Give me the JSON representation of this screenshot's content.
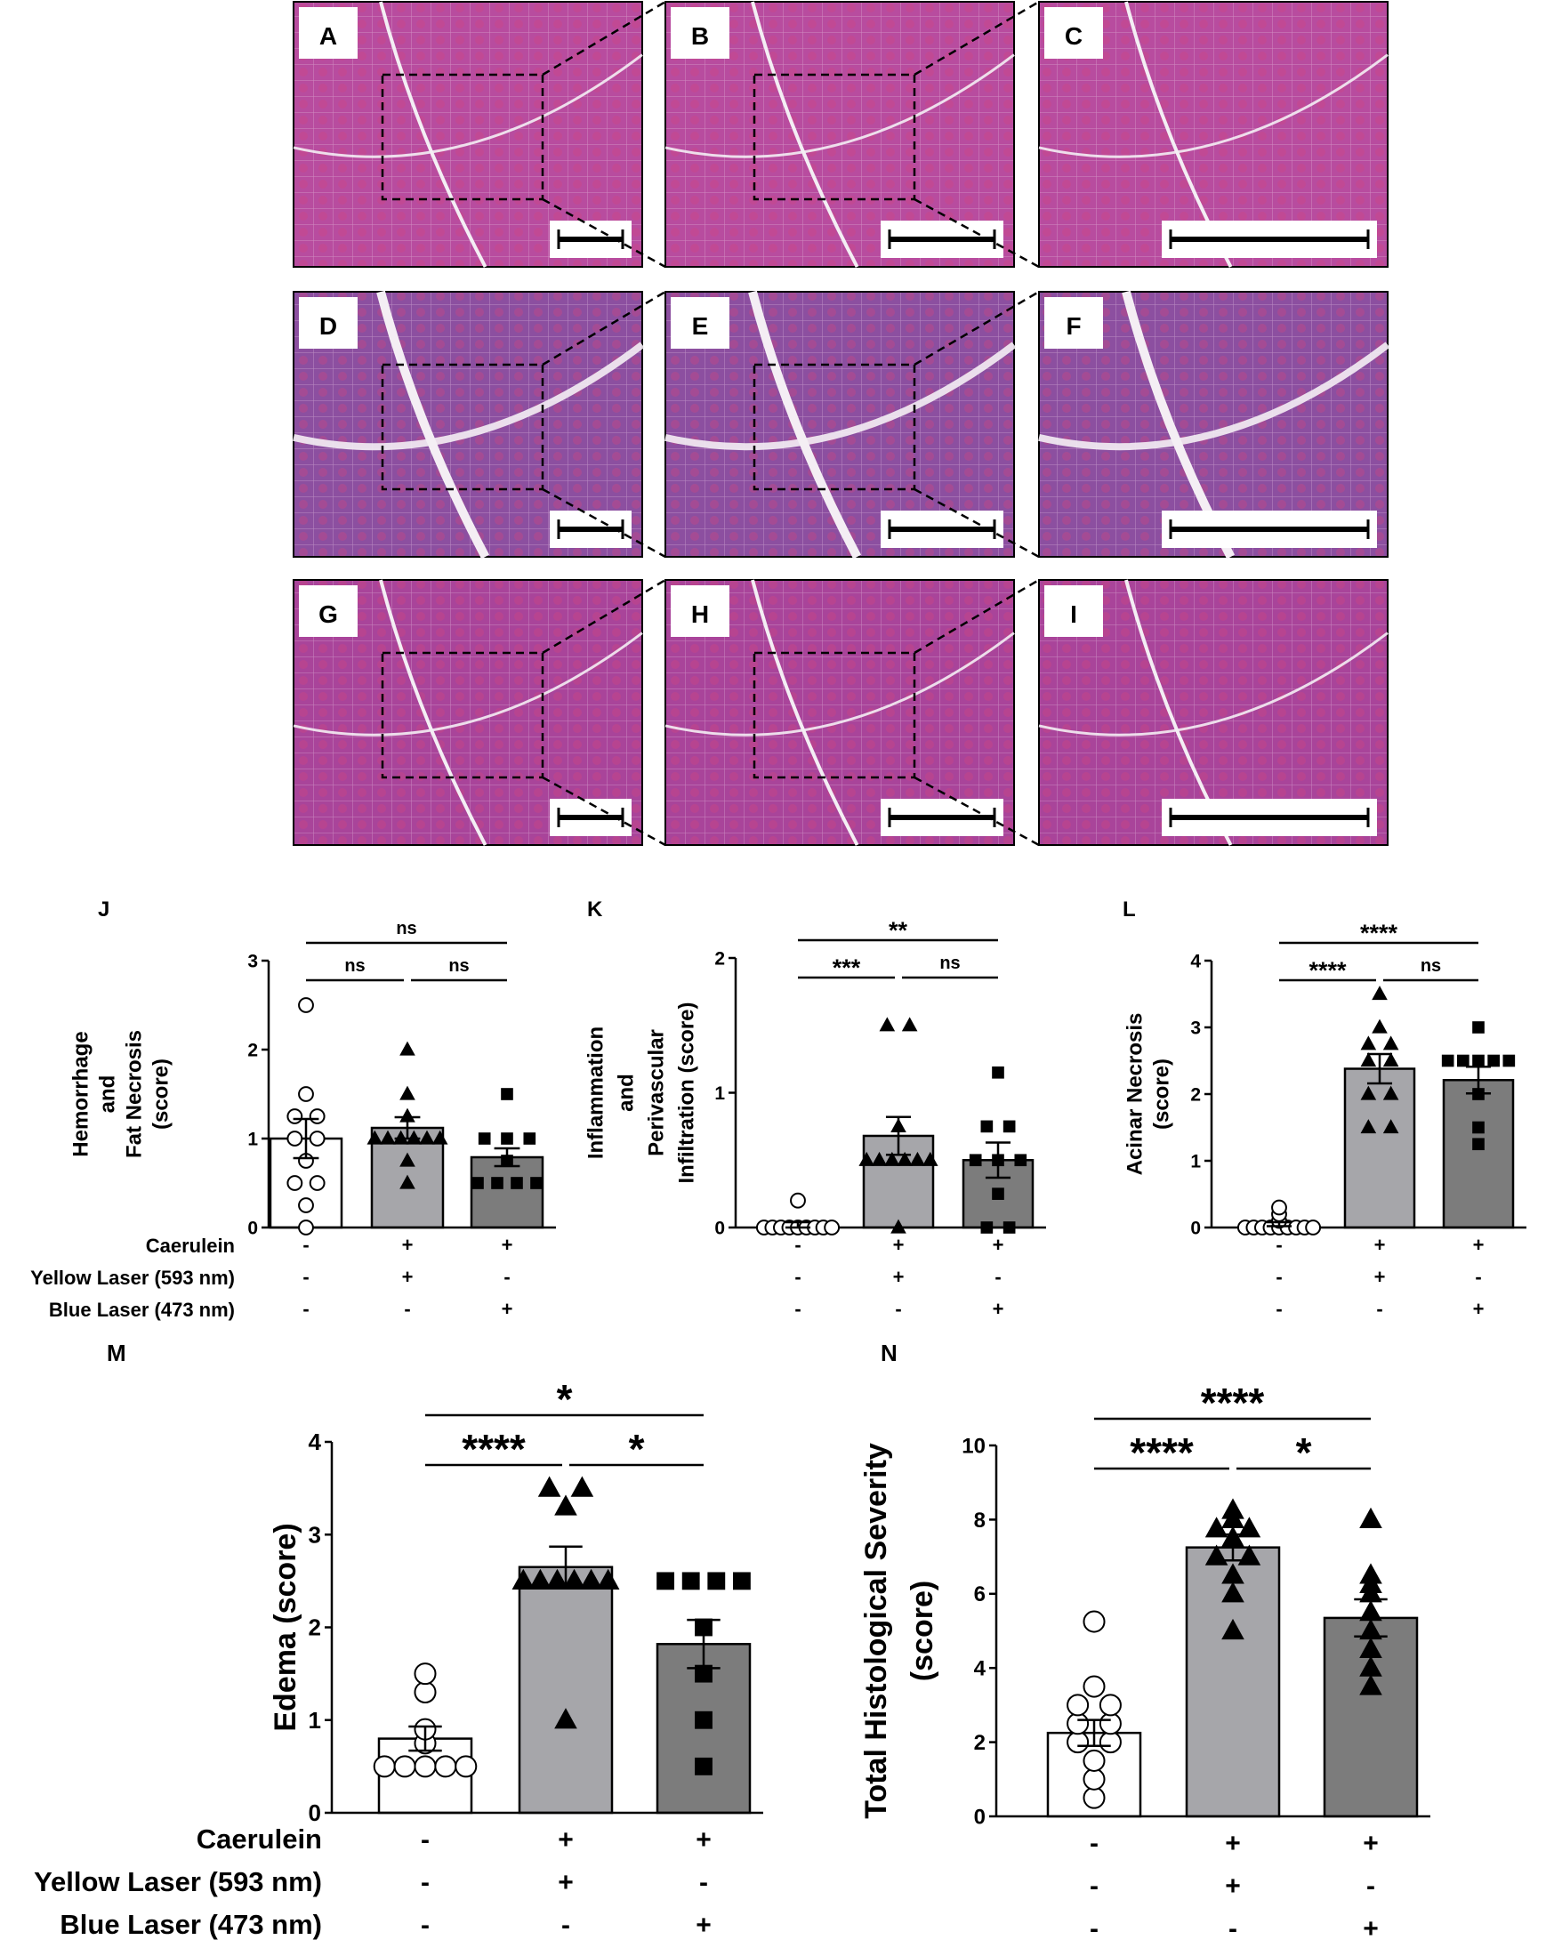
{
  "panels": {
    "letters": [
      "A",
      "B",
      "C",
      "D",
      "E",
      "F",
      "G",
      "H",
      "I"
    ],
    "tissue_colors": {
      "row1": "#b84c9f",
      "row2": "#8c4fa0",
      "row3": "#a9449a"
    }
  },
  "row_labels": {
    "caerulein": "Caerulein",
    "yellow": "Yellow Laser (593 nm)",
    "blue": "Blue Laser (473 nm)"
  },
  "treatments": {
    "caerulein": [
      "-",
      "+",
      "+"
    ],
    "yellow": [
      "-",
      "+",
      "-"
    ],
    "blue": [
      "-",
      "-",
      "+"
    ]
  },
  "chart_data": [
    {
      "id": "J",
      "type": "bar",
      "ylabel_lines": [
        "Hemorrhage",
        "and",
        "Fat Necrosis",
        "(score)"
      ],
      "ylim": [
        0,
        3
      ],
      "yticks": [
        0,
        1,
        2,
        3
      ],
      "means": [
        1.0,
        1.12,
        0.79
      ],
      "sem": [
        0.22,
        0.12,
        0.1
      ],
      "points": [
        [
          0,
          0.25,
          0.5,
          0.5,
          0.75,
          1.0,
          1.0,
          1.25,
          1.25,
          1.5,
          2.5
        ],
        [
          0.5,
          0.75,
          1.0,
          1.0,
          1.0,
          1.0,
          1.0,
          1.0,
          1.25,
          1.5,
          2.0
        ],
        [
          0.5,
          0.5,
          0.5,
          0.5,
          0.75,
          1.0,
          1.0,
          1.0,
          1.5
        ]
      ],
      "markers": [
        "circle",
        "triangle",
        "square"
      ],
      "bar_colors": [
        "#ffffff",
        "#a6a6aa",
        "#7c7c7c"
      ],
      "significance": [
        {
          "from": 0,
          "to": 2,
          "label": "ns"
        },
        {
          "from": 0,
          "to": 1,
          "label": "ns"
        },
        {
          "from": 1,
          "to": 2,
          "label": "ns"
        }
      ]
    },
    {
      "id": "K",
      "type": "bar",
      "ylabel_lines": [
        "Inflammation",
        "and",
        "Perivascular",
        "Infiltration (score)"
      ],
      "ylim": [
        0,
        2
      ],
      "yticks": [
        0,
        1,
        2
      ],
      "means": [
        0.02,
        0.68,
        0.5
      ],
      "sem": [
        0.02,
        0.14,
        0.13
      ],
      "points": [
        [
          0,
          0,
          0,
          0,
          0,
          0,
          0,
          0,
          0,
          0.2
        ],
        [
          0,
          0.5,
          0.5,
          0.5,
          0.5,
          0.5,
          0.5,
          0.75,
          1.5,
          1.5
        ],
        [
          0,
          0,
          0.25,
          0.5,
          0.5,
          0.5,
          0.75,
          0.75,
          1.15
        ]
      ],
      "markers": [
        "circle",
        "triangle",
        "square"
      ],
      "bar_colors": [
        "#ffffff",
        "#a6a6aa",
        "#7c7c7c"
      ],
      "significance": [
        {
          "from": 0,
          "to": 2,
          "label": "**"
        },
        {
          "from": 0,
          "to": 1,
          "label": "***"
        },
        {
          "from": 1,
          "to": 2,
          "label": "ns"
        }
      ]
    },
    {
      "id": "L",
      "type": "bar",
      "ylabel_lines": [
        "Acinar  Necrosis",
        "(score)"
      ],
      "ylim": [
        0,
        4
      ],
      "yticks": [
        0,
        1,
        2,
        3,
        4
      ],
      "means": [
        0.05,
        2.38,
        2.21
      ],
      "sem": [
        0.03,
        0.22,
        0.2
      ],
      "points": [
        [
          0,
          0,
          0,
          0,
          0,
          0,
          0,
          0,
          0,
          0.1,
          0.2,
          0.3
        ],
        [
          1.5,
          1.5,
          2.0,
          2.0,
          2.5,
          2.5,
          2.75,
          2.75,
          3.0,
          3.5
        ],
        [
          1.25,
          1.5,
          2.0,
          2.5,
          2.5,
          2.5,
          2.5,
          2.5,
          3.0
        ]
      ],
      "markers": [
        "circle",
        "triangle",
        "square"
      ],
      "bar_colors": [
        "#ffffff",
        "#a6a6aa",
        "#7c7c7c"
      ],
      "significance": [
        {
          "from": 0,
          "to": 2,
          "label": "****"
        },
        {
          "from": 0,
          "to": 1,
          "label": "****"
        },
        {
          "from": 1,
          "to": 2,
          "label": "ns"
        }
      ]
    },
    {
      "id": "M",
      "type": "bar",
      "ylabel_lines": [
        "Edema (score)"
      ],
      "ylim": [
        0,
        4
      ],
      "yticks": [
        0,
        1,
        2,
        3,
        4
      ],
      "means": [
        0.8,
        2.65,
        1.82
      ],
      "sem": [
        0.13,
        0.22,
        0.26
      ],
      "points": [
        [
          0.5,
          0.5,
          0.5,
          0.5,
          0.5,
          0.75,
          0.9,
          1.3,
          1.5
        ],
        [
          1.0,
          2.5,
          2.5,
          2.5,
          2.5,
          2.5,
          2.5,
          3.3,
          3.5,
          3.5
        ],
        [
          0.5,
          1.0,
          1.5,
          2.0,
          2.5,
          2.5,
          2.5,
          2.5
        ]
      ],
      "markers": [
        "circle",
        "triangle",
        "square"
      ],
      "bar_colors": [
        "#ffffff",
        "#a6a6aa",
        "#7c7c7c"
      ],
      "significance": [
        {
          "from": 0,
          "to": 2,
          "label": "*"
        },
        {
          "from": 0,
          "to": 1,
          "label": "****"
        },
        {
          "from": 1,
          "to": 2,
          "label": "*"
        }
      ]
    },
    {
      "id": "N",
      "type": "bar",
      "ylabel_lines": [
        "Total Histological  Severity",
        "(score)"
      ],
      "ylim": [
        0,
        10
      ],
      "yticks": [
        0,
        2,
        4,
        6,
        8,
        10
      ],
      "means": [
        2.25,
        7.25,
        5.35
      ],
      "sem": [
        0.35,
        0.35,
        0.5
      ],
      "points": [
        [
          0.5,
          1.0,
          1.5,
          2.0,
          2.0,
          2.5,
          2.5,
          3.0,
          3.0,
          3.5,
          5.25
        ],
        [
          5.0,
          6.0,
          6.5,
          7.0,
          7.0,
          7.5,
          7.75,
          7.75,
          8.0,
          8.25
        ],
        [
          3.5,
          4.0,
          4.5,
          5.0,
          5.5,
          6.0,
          6.25,
          6.5,
          8.0
        ]
      ],
      "markers": [
        "circle",
        "triangle",
        "triangle"
      ],
      "bar_colors": [
        "#ffffff",
        "#a6a6aa",
        "#7c7c7c"
      ],
      "significance": [
        {
          "from": 0,
          "to": 2,
          "label": "****"
        },
        {
          "from": 0,
          "to": 1,
          "label": "****"
        },
        {
          "from": 1,
          "to": 2,
          "label": "*"
        }
      ]
    }
  ]
}
